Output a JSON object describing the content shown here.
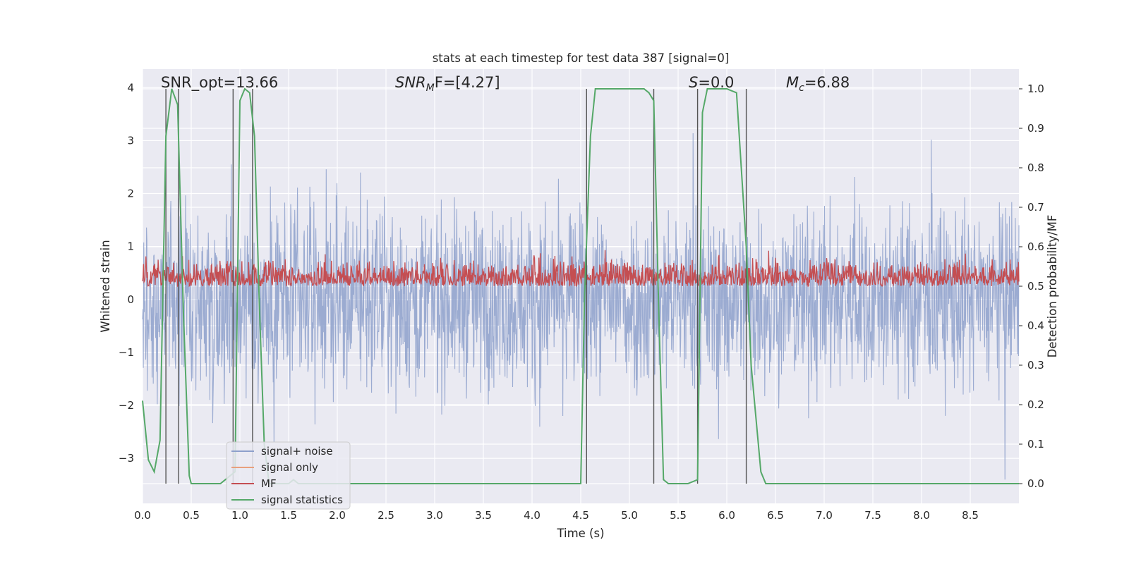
{
  "chart_data": {
    "type": "line",
    "title": "stats at each timestep for test data 387 [signal=0]",
    "xlabel": "Time (s)",
    "ylabel": "Whitened strain",
    "y2label": "Detection probability/MF",
    "xlim": [
      0,
      9.0
    ],
    "ylim": [
      -3.85,
      4.35
    ],
    "y2lim": [
      -0.05,
      1.05
    ],
    "xticks": [
      "0.0",
      "0.5",
      "1.0",
      "1.5",
      "2.0",
      "2.5",
      "3.0",
      "3.5",
      "4.0",
      "4.5",
      "5.0",
      "5.5",
      "6.0",
      "6.5",
      "7.0",
      "7.5",
      "8.0",
      "8.5"
    ],
    "yticks": [
      "−3",
      "−2",
      "−1",
      "0",
      "1",
      "2",
      "3",
      "4"
    ],
    "y2ticks": [
      "0.0",
      "0.1",
      "0.2",
      "0.3",
      "0.4",
      "0.5",
      "0.6",
      "0.7",
      "0.8",
      "0.9",
      "1.0"
    ],
    "grid": true,
    "legend_position": "lower-left",
    "annotations": {
      "snr_opt": "SNR_opt=13.66",
      "snr_mf_base": "SNR",
      "snr_mf_sub": "M",
      "snr_mf_rest": "F=[4.27]",
      "s_base": "S",
      "s_rest": "=0.0",
      "mc_base": "M",
      "mc_sub": "c",
      "mc_rest": "=6.88"
    },
    "series": [
      {
        "name": "signal+ noise",
        "color": "#8da0cb",
        "axis": "left",
        "description_range": [
          -3.4,
          3.6
        ]
      },
      {
        "name": "signal only",
        "color": "#e8a07d",
        "axis": "left",
        "values": []
      },
      {
        "name": "MF",
        "color": "#c44e52",
        "axis": "right",
        "range": [
          0.5,
          0.58
        ]
      },
      {
        "name": "signal statistics",
        "color": "#55a868",
        "axis": "right",
        "x": [
          0.0,
          0.06,
          0.12,
          0.18,
          0.24,
          0.3,
          0.36,
          0.42,
          0.48,
          0.5,
          0.6,
          0.8,
          0.9,
          0.95,
          1.0,
          1.05,
          1.1,
          1.15,
          1.2,
          1.25,
          1.3,
          1.4,
          1.5,
          1.55,
          1.6,
          1.7,
          2.0,
          3.0,
          4.0,
          4.5,
          4.54,
          4.6,
          4.65,
          4.8,
          5.0,
          5.15,
          5.2,
          5.25,
          5.3,
          5.35,
          5.4,
          5.45,
          5.6,
          5.7,
          5.75,
          5.8,
          5.9,
          6.0,
          6.1,
          6.2,
          6.25,
          6.35,
          6.4,
          6.5,
          7.0,
          7.5,
          8.0,
          8.5,
          9.0
        ],
        "y": [
          0.21,
          0.06,
          0.03,
          0.11,
          0.88,
          1.0,
          0.96,
          0.43,
          0.02,
          0.0,
          0.0,
          0.0,
          0.02,
          0.03,
          0.97,
          1.0,
          0.99,
          0.88,
          0.45,
          0.1,
          0.0,
          0.0,
          0.0,
          0.01,
          0.0,
          0.0,
          0.0,
          0.0,
          0.0,
          0.0,
          0.48,
          0.88,
          1.0,
          1.0,
          1.0,
          1.0,
          0.99,
          0.97,
          0.45,
          0.01,
          0.0,
          0.0,
          0.0,
          0.01,
          0.94,
          1.0,
          1.0,
          1.0,
          0.99,
          0.6,
          0.3,
          0.03,
          0.0,
          0.0,
          0.0,
          0.0,
          0.0,
          0.0,
          0.0
        ]
      }
    ],
    "markers": [
      0.24,
      0.37,
      0.93,
      1.13,
      4.56,
      5.25,
      5.7,
      6.2
    ]
  }
}
